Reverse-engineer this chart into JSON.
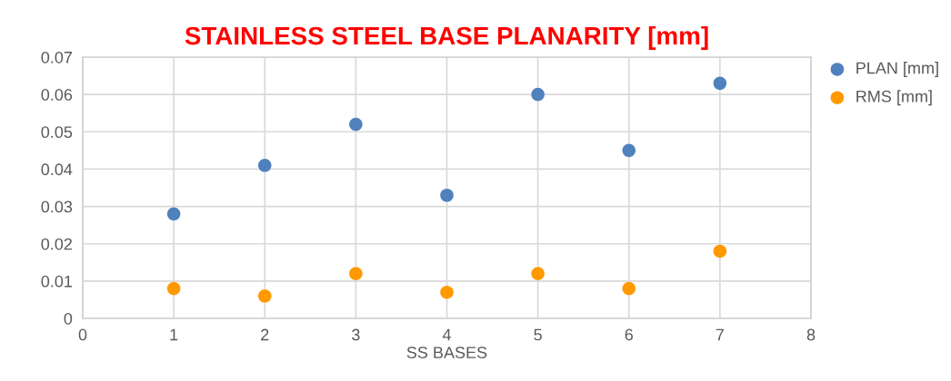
{
  "chart_data": {
    "type": "scatter",
    "title": "STAINLESS STEEL BASE PLANARITY [mm]",
    "xlabel": "SS BASES",
    "x": [
      1,
      2,
      3,
      4,
      5,
      6,
      7
    ],
    "series": [
      {
        "name": "PLAN [mm]",
        "color": "#4f81bd",
        "values": [
          0.028,
          0.041,
          0.052,
          0.033,
          0.06,
          0.045,
          0.063
        ]
      },
      {
        "name": "RMS [mm]",
        "color": "#ff9900",
        "values": [
          0.008,
          0.006,
          0.012,
          0.007,
          0.012,
          0.008,
          0.018
        ]
      }
    ],
    "xlim": [
      0,
      8
    ],
    "xticks": [
      0,
      1,
      2,
      3,
      4,
      5,
      6,
      7,
      8
    ],
    "ylim": [
      0,
      0.07
    ],
    "yticks": [
      {
        "value": 0,
        "label": "0"
      },
      0.01,
      0.02,
      0.03,
      0.04,
      0.05,
      0.06,
      0.07
    ],
    "grid": true,
    "legend": "top right",
    "marker": "circle"
  }
}
